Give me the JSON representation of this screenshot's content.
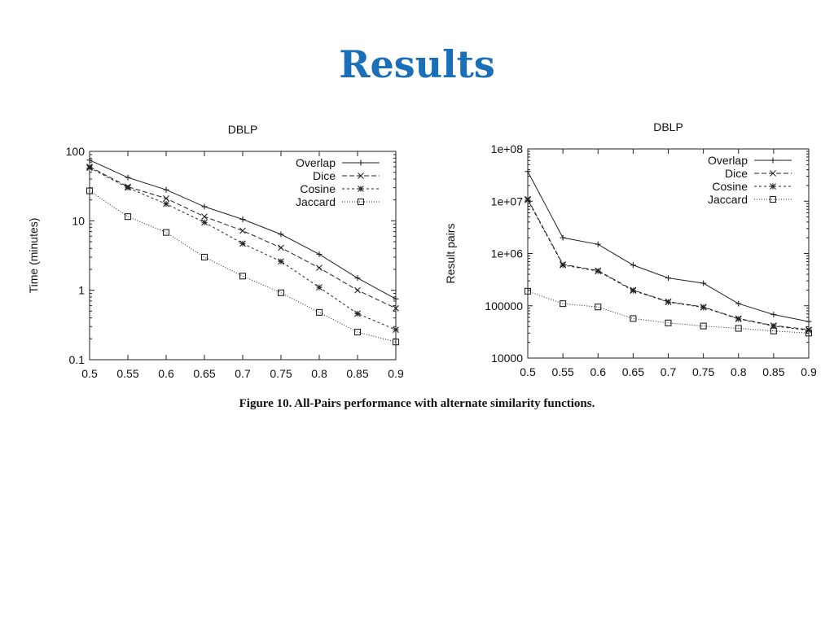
{
  "slide": {
    "title": "Results"
  },
  "figure": {
    "caption": "Figure 10.  All-Pairs performance with alternate similarity functions."
  },
  "chart_data": [
    {
      "type": "line",
      "title": "DBLP",
      "xlabel": "",
      "ylabel": "Time (minutes)",
      "yscale": "log",
      "ylim": [
        0.1,
        100
      ],
      "xlim": [
        0.5,
        0.9
      ],
      "x": [
        0.5,
        0.55,
        0.6,
        0.65,
        0.7,
        0.75,
        0.8,
        0.85,
        0.9
      ],
      "xticks": [
        "0.5",
        "0.55",
        "0.6",
        "0.65",
        "0.7",
        "0.75",
        "0.8",
        "0.85",
        "0.9"
      ],
      "yticks": [
        {
          "value": 0.1,
          "label": "0.1"
        },
        {
          "value": 1,
          "label": "1"
        },
        {
          "value": 10,
          "label": "10"
        },
        {
          "value": 100,
          "label": "100"
        }
      ],
      "legend": "top-right",
      "series": [
        {
          "name": "Overlap",
          "marker": "plus",
          "dash": "",
          "values": [
            75,
            42,
            28,
            16,
            10.5,
            6.4,
            3.3,
            1.5,
            0.75
          ]
        },
        {
          "name": "Dice",
          "marker": "x",
          "dash": "6,3",
          "values": [
            60,
            31,
            21,
            11.5,
            7.2,
            4.1,
            2.1,
            1.0,
            0.55
          ]
        },
        {
          "name": "Cosine",
          "marker": "star",
          "dash": "3,3",
          "values": [
            58,
            30,
            17.5,
            9.5,
            4.7,
            2.6,
            1.1,
            0.46,
            0.27
          ]
        },
        {
          "name": "Jaccard",
          "marker": "square",
          "dash": "1,2",
          "values": [
            27,
            11.5,
            6.8,
            3.0,
            1.6,
            0.92,
            0.48,
            0.25,
            0.18
          ]
        }
      ]
    },
    {
      "type": "line",
      "title": "DBLP",
      "xlabel": "",
      "ylabel": "Result pairs",
      "yscale": "log",
      "ylim": [
        10000,
        100000000
      ],
      "xlim": [
        0.5,
        0.9
      ],
      "x": [
        0.5,
        0.55,
        0.6,
        0.65,
        0.7,
        0.75,
        0.8,
        0.85,
        0.9
      ],
      "xticks": [
        "0.5",
        "0.55",
        "0.6",
        "0.65",
        "0.7",
        "0.75",
        "0.8",
        "0.85",
        "0.9"
      ],
      "yticks": [
        {
          "value": 10000,
          "label": "10000"
        },
        {
          "value": 100000,
          "label": "100000"
        },
        {
          "value": 1000000,
          "label": "1e+06"
        },
        {
          "value": 10000000,
          "label": "1e+07"
        },
        {
          "value": 100000000,
          "label": "1e+08"
        }
      ],
      "legend": "top-right",
      "series": [
        {
          "name": "Overlap",
          "marker": "plus",
          "dash": "",
          "values": [
            37000000,
            2000000,
            1500000,
            600000,
            340000,
            270000,
            110000,
            68000,
            50000
          ]
        },
        {
          "name": "Dice",
          "marker": "x",
          "dash": "6,3",
          "values": [
            11000000,
            620000,
            470000,
            200000,
            120000,
            95000,
            57000,
            42000,
            35000
          ]
        },
        {
          "name": "Cosine",
          "marker": "star",
          "dash": "3,3",
          "values": [
            10500000,
            600000,
            460000,
            195000,
            118000,
            93000,
            56000,
            41000,
            34000
          ]
        },
        {
          "name": "Jaccard",
          "marker": "square",
          "dash": "1,2",
          "values": [
            190000,
            110000,
            95000,
            57000,
            47000,
            41000,
            37000,
            33000,
            30000
          ]
        }
      ]
    }
  ]
}
